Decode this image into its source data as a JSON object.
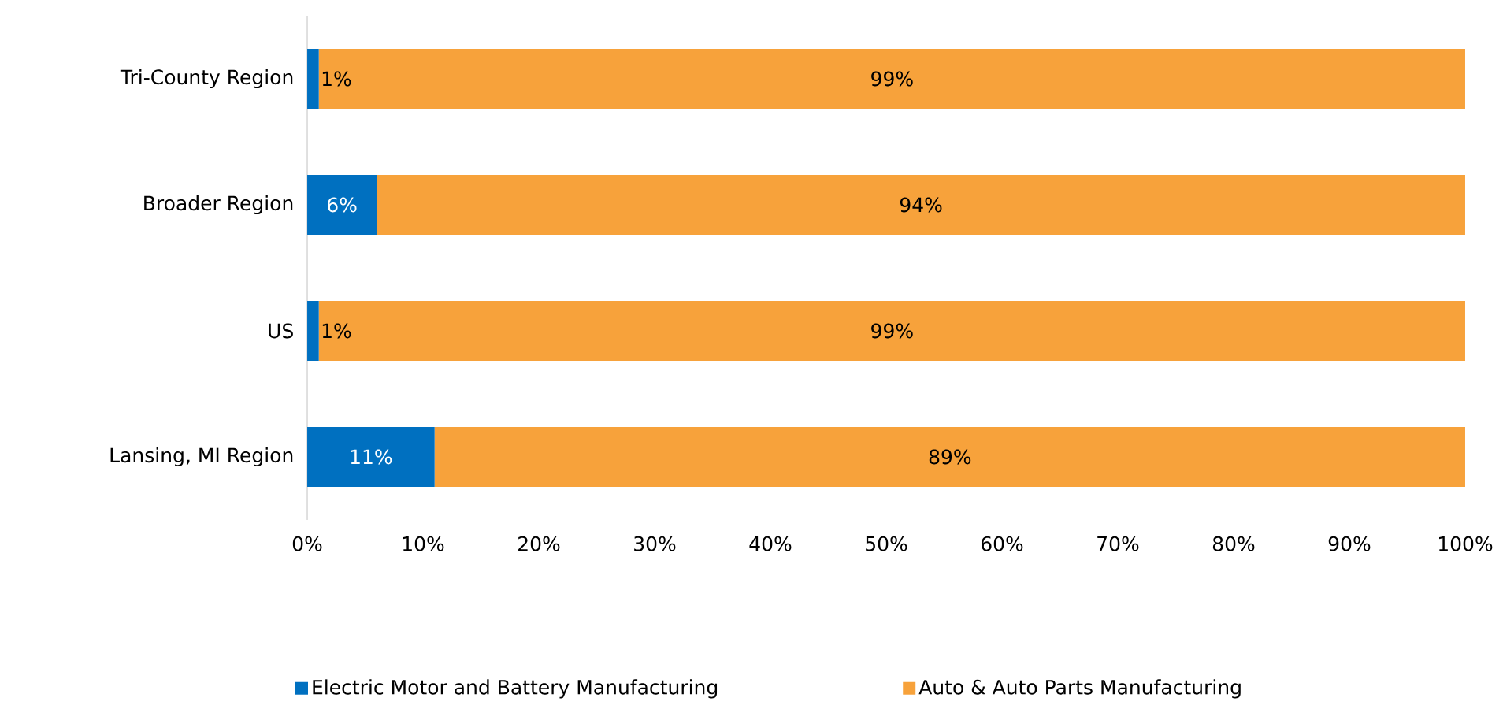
{
  "chart_data": {
    "type": "bar",
    "orientation": "horizontal",
    "stacked": true,
    "categories": [
      "Tri-County Region",
      "Broader Region",
      "US",
      "Lansing, MI Region"
    ],
    "series": [
      {
        "name": "Electric Motor and Battery Manufacturing",
        "color": "#0070c0",
        "values": [
          1,
          6,
          1,
          11
        ],
        "value_labels": [
          "1%",
          "6%",
          "1%",
          "11%"
        ]
      },
      {
        "name": "Auto & Auto Parts Manufacturing",
        "color": "#f7a23b",
        "values": [
          99,
          94,
          99,
          89
        ],
        "value_labels": [
          "99%",
          "94%",
          "99%",
          "89%"
        ]
      }
    ],
    "xlim": [
      0,
      100
    ],
    "xticks": [
      {
        "value": 0,
        "label": "0%"
      },
      {
        "value": 10,
        "label": "10%"
      },
      {
        "value": 20,
        "label": "20%"
      },
      {
        "value": 30,
        "label": "30%"
      },
      {
        "value": 40,
        "label": "40%"
      },
      {
        "value": 50,
        "label": "50%"
      },
      {
        "value": 60,
        "label": "60%"
      },
      {
        "value": 70,
        "label": "70%"
      },
      {
        "value": 80,
        "label": "80%"
      },
      {
        "value": 90,
        "label": "90%"
      },
      {
        "value": 100,
        "label": "100%"
      }
    ],
    "legend": "bottom",
    "grid": false
  }
}
